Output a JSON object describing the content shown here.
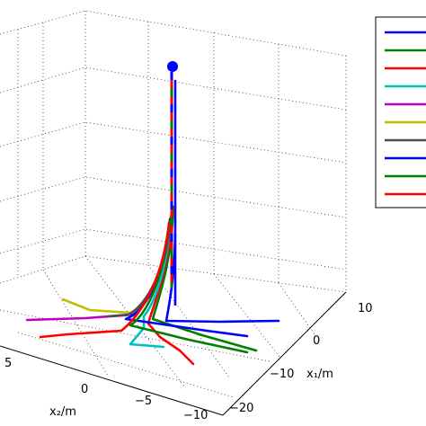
{
  "chart_data": {
    "type": "line",
    "title": "",
    "xlabel": "x₁/m",
    "ylabel": "x₂/m",
    "x1_ticks": [
      "10",
      "0",
      "−10",
      "−20"
    ],
    "x2_ticks": [
      "5",
      "0",
      "−5",
      "−10"
    ],
    "grid": true,
    "legend_position": "right",
    "marker_color": "#0000ff",
    "series": [
      {
        "color": "#0000ff"
      },
      {
        "color": "#008000"
      },
      {
        "color": "#ff0000"
      },
      {
        "color": "#00bfbf"
      },
      {
        "color": "#bf00bf"
      },
      {
        "color": "#bfbf00"
      },
      {
        "color": "#4d4d4d"
      },
      {
        "color": "#0000ff"
      },
      {
        "color": "#008000"
      },
      {
        "color": "#ff0000"
      }
    ]
  }
}
